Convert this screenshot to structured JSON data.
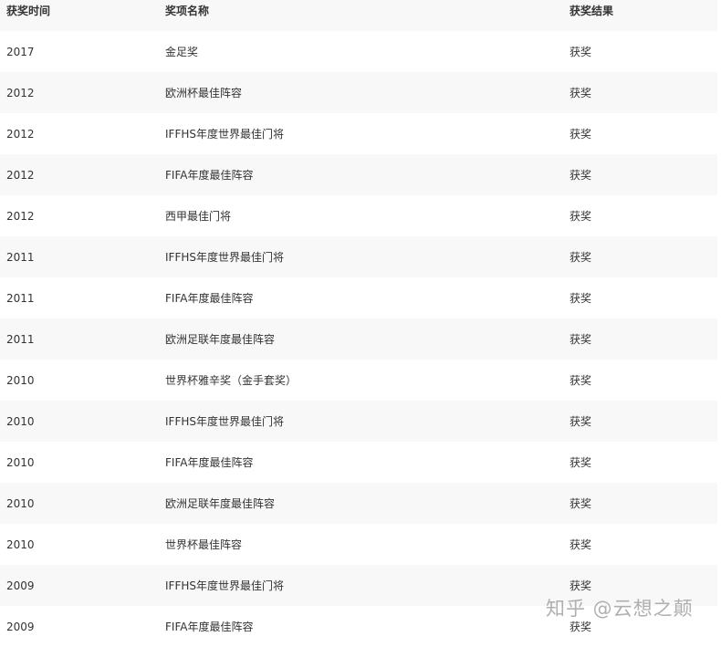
{
  "table": {
    "headers": [
      "获奖时间",
      "奖项名称",
      "获奖结果"
    ],
    "rows": [
      [
        "2017",
        "金足奖",
        "获奖"
      ],
      [
        "2012",
        "欧洲杯最佳阵容",
        "获奖"
      ],
      [
        "2012",
        "IFFHS年度世界最佳门将",
        "获奖"
      ],
      [
        "2012",
        "FIFA年度最佳阵容",
        "获奖"
      ],
      [
        "2012",
        "西甲最佳门将",
        "获奖"
      ],
      [
        "2011",
        "IFFHS年度世界最佳门将",
        "获奖"
      ],
      [
        "2011",
        "FIFA年度最佳阵容",
        "获奖"
      ],
      [
        "2011",
        "欧洲足联年度最佳阵容",
        "获奖"
      ],
      [
        "2010",
        "世界杯雅辛奖（金手套奖）",
        "获奖"
      ],
      [
        "2010",
        "IFFHS年度世界最佳门将",
        "获奖"
      ],
      [
        "2010",
        "FIFA年度最佳阵容",
        "获奖"
      ],
      [
        "2010",
        "欧洲足联年度最佳阵容",
        "获奖"
      ],
      [
        "2010",
        "世界杯最佳阵容",
        "获奖"
      ],
      [
        "2009",
        "IFFHS年度世界最佳门将",
        "获奖"
      ],
      [
        "2009",
        "FIFA年度最佳阵容",
        "获奖"
      ]
    ]
  },
  "watermark": "知乎 @云想之颠"
}
